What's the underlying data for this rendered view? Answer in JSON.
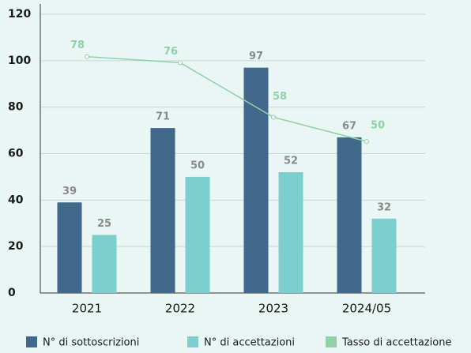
{
  "chart_data": {
    "type": "bar",
    "categories": [
      "2021",
      "2022",
      "2023",
      "2024/05"
    ],
    "series": [
      {
        "name": "N° di sottoscrizioni",
        "color": "#41678a",
        "values": [
          39,
          71,
          97,
          67
        ]
      },
      {
        "name": "N° di accettazioni",
        "color": "#7dcfcf",
        "values": [
          25,
          50,
          52,
          32
        ]
      },
      {
        "name": "Tasso di accettazione",
        "color": "#8fd1a8",
        "type": "line",
        "axis": "y2",
        "values": [
          78,
          76,
          58,
          50
        ]
      }
    ],
    "ylim": [
      0,
      120
    ],
    "yticks": [
      0,
      20,
      40,
      60,
      80,
      100,
      120
    ],
    "y2lim": [
      0,
      92
    ],
    "grid": true,
    "legend": "bottom"
  }
}
